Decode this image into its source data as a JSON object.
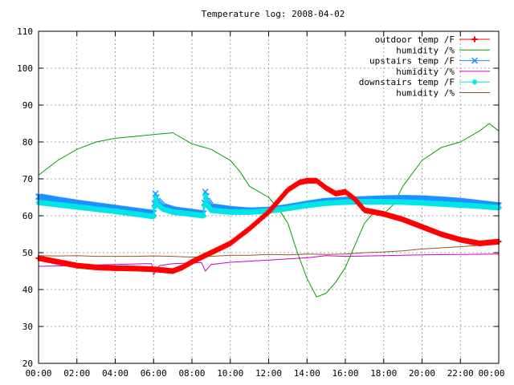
{
  "chart_data": {
    "type": "line",
    "title": "Temperature log: 2008-04-02",
    "xlabel": "",
    "ylabel": "",
    "x_range_hours": [
      0,
      24
    ],
    "ylim": [
      20,
      110
    ],
    "grid": true,
    "legend_position": "top-right",
    "x_tick_labels": [
      "00:00",
      "02:00",
      "04:00",
      "06:00",
      "08:00",
      "10:00",
      "12:00",
      "14:00",
      "16:00",
      "18:00",
      "20:00",
      "22:00",
      "00:00"
    ],
    "y_tick_labels": [
      "20",
      "30",
      "40",
      "50",
      "60",
      "70",
      "80",
      "90",
      "100",
      "110"
    ],
    "series": [
      {
        "name": "outdoor temp /F",
        "color": "#ff0000",
        "marker": "plus",
        "points": [
          [
            0,
            48.5
          ],
          [
            1,
            47.5
          ],
          [
            2,
            46.5
          ],
          [
            3,
            46
          ],
          [
            4,
            45.8
          ],
          [
            5,
            45.7
          ],
          [
            6,
            45.5
          ],
          [
            7,
            45
          ],
          [
            7.5,
            46
          ],
          [
            8,
            47.5
          ],
          [
            9,
            50
          ],
          [
            10,
            52.5
          ],
          [
            11,
            56.5
          ],
          [
            12,
            61
          ],
          [
            13,
            67
          ],
          [
            13.6,
            69
          ],
          [
            14,
            69.5
          ],
          [
            14.5,
            69.5
          ],
          [
            15,
            67.5
          ],
          [
            15.5,
            66
          ],
          [
            16,
            66.5
          ],
          [
            16.5,
            64.5
          ],
          [
            17,
            61.5
          ],
          [
            17.5,
            61
          ],
          [
            18,
            60.5
          ],
          [
            19,
            59
          ],
          [
            20,
            57
          ],
          [
            21,
            55
          ],
          [
            22,
            53.5
          ],
          [
            23,
            52.5
          ],
          [
            24,
            53
          ]
        ]
      },
      {
        "name": "humidity /%",
        "color": "#00a000",
        "marker": "none",
        "points": [
          [
            0,
            71
          ],
          [
            1,
            75
          ],
          [
            2,
            78
          ],
          [
            3,
            80
          ],
          [
            4,
            81
          ],
          [
            5,
            81.5
          ],
          [
            6,
            82
          ],
          [
            7,
            82.5
          ],
          [
            8,
            79.5
          ],
          [
            9,
            78
          ],
          [
            10,
            75
          ],
          [
            10.5,
            72
          ],
          [
            11,
            68
          ],
          [
            12,
            65
          ],
          [
            12.5,
            62
          ],
          [
            13,
            58
          ],
          [
            13.5,
            50
          ],
          [
            14,
            43
          ],
          [
            14.5,
            38
          ],
          [
            15,
            39
          ],
          [
            15.5,
            42
          ],
          [
            16,
            46
          ],
          [
            16.5,
            52
          ],
          [
            17,
            58
          ],
          [
            17.5,
            61
          ],
          [
            18,
            60.5
          ],
          [
            18.5,
            63
          ],
          [
            19,
            68
          ],
          [
            20,
            75
          ],
          [
            21,
            78.5
          ],
          [
            22,
            80
          ],
          [
            23,
            83
          ],
          [
            23.5,
            85
          ],
          [
            24,
            83
          ]
        ]
      },
      {
        "name": "upstairs temp /F",
        "color": "#1e90ff",
        "marker": "x",
        "points": [
          [
            0,
            65.2
          ],
          [
            1,
            64.3
          ],
          [
            2,
            63.5
          ],
          [
            3,
            62.8
          ],
          [
            4,
            62.1
          ],
          [
            5,
            61.4
          ],
          [
            6,
            60.7
          ],
          [
            6.1,
            66
          ],
          [
            6.2,
            64
          ],
          [
            6.5,
            62.5
          ],
          [
            7,
            61.7
          ],
          [
            8,
            61
          ],
          [
            8.6,
            60.6
          ],
          [
            8.7,
            66.5
          ],
          [
            8.8,
            64
          ],
          [
            9,
            62.5
          ],
          [
            10,
            61.8
          ],
          [
            11,
            61.4
          ],
          [
            12,
            61.6
          ],
          [
            13,
            62.3
          ],
          [
            14,
            63.2
          ],
          [
            15,
            64
          ],
          [
            16,
            64.3
          ],
          [
            17,
            64.5
          ],
          [
            18,
            64.7
          ],
          [
            19,
            64.8
          ],
          [
            20,
            64.7
          ],
          [
            21,
            64.4
          ],
          [
            22,
            64
          ],
          [
            23,
            63.4
          ],
          [
            24,
            62.8
          ]
        ]
      },
      {
        "name": "humidity /%",
        "color": "#cc00cc",
        "marker": "none",
        "points": [
          [
            0,
            46.3
          ],
          [
            2,
            46.5
          ],
          [
            4,
            46.8
          ],
          [
            5.5,
            47
          ],
          [
            5.9,
            47
          ],
          [
            6,
            44
          ],
          [
            6.3,
            46.5
          ],
          [
            7,
            47
          ],
          [
            8,
            47.2
          ],
          [
            8.5,
            47.3
          ],
          [
            8.7,
            45
          ],
          [
            9,
            46.8
          ],
          [
            10,
            47.4
          ],
          [
            12,
            48
          ],
          [
            14,
            48.6
          ],
          [
            15,
            49.2
          ],
          [
            16,
            49
          ],
          [
            18,
            49.2
          ],
          [
            20,
            49.4
          ],
          [
            22,
            49.5
          ],
          [
            24,
            49.6
          ]
        ]
      },
      {
        "name": "downstairs temp /F",
        "color": "#00e5e5",
        "marker": "star",
        "points": [
          [
            0,
            63.6
          ],
          [
            1,
            63
          ],
          [
            2,
            62.4
          ],
          [
            3,
            61.8
          ],
          [
            4,
            61.2
          ],
          [
            5,
            60.5
          ],
          [
            6,
            59.8
          ],
          [
            6.1,
            65
          ],
          [
            6.2,
            63
          ],
          [
            6.5,
            61.8
          ],
          [
            7,
            61
          ],
          [
            8,
            60.4
          ],
          [
            8.6,
            60
          ],
          [
            8.7,
            65.5
          ],
          [
            8.8,
            63
          ],
          [
            9,
            61.5
          ],
          [
            10,
            61
          ],
          [
            11,
            61
          ],
          [
            12,
            61.3
          ],
          [
            13,
            62
          ],
          [
            14,
            62.8
          ],
          [
            15,
            63.4
          ],
          [
            16,
            63.7
          ],
          [
            17,
            63.8
          ],
          [
            18,
            63.8
          ],
          [
            19,
            63.7
          ],
          [
            20,
            63.5
          ],
          [
            21,
            63.2
          ],
          [
            22,
            62.9
          ],
          [
            23,
            62.6
          ],
          [
            24,
            62.2
          ]
        ]
      },
      {
        "name": "humidity /%",
        "color": "#a0522d",
        "marker": "none",
        "points": [
          [
            0,
            49.2
          ],
          [
            1,
            49.1
          ],
          [
            2,
            49.2
          ],
          [
            3,
            49
          ],
          [
            4,
            49
          ],
          [
            5,
            49
          ],
          [
            6,
            49.1
          ],
          [
            7,
            49
          ],
          [
            8,
            48.8
          ],
          [
            9,
            49
          ],
          [
            10,
            49.3
          ],
          [
            11,
            49.3
          ],
          [
            12,
            49.5
          ],
          [
            13,
            49.4
          ],
          [
            14,
            49.6
          ],
          [
            15,
            49.5
          ],
          [
            16,
            49.6
          ],
          [
            17,
            50
          ],
          [
            18,
            50.2
          ],
          [
            19,
            50.5
          ],
          [
            20,
            51
          ],
          [
            21,
            51.3
          ],
          [
            22,
            51.6
          ],
          [
            23,
            52
          ],
          [
            24,
            52.3
          ]
        ]
      }
    ]
  }
}
